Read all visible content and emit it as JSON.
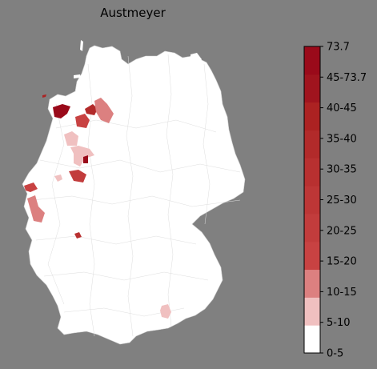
{
  "title": "Austmeyer",
  "colorbar": {
    "labels": [
      "0-5",
      "5-10",
      "10-15",
      "15-20",
      "20-25",
      "25-30",
      "30-35",
      "35-40",
      "40-45",
      "45-73.7",
      "73.7"
    ],
    "bins": [
      {
        "label": "0-5",
        "color": "#ffffff"
      },
      {
        "label": "5-10",
        "color": "#f0c0c0"
      },
      {
        "label": "10-15",
        "color": "#dc8080"
      },
      {
        "label": "15-20",
        "color": "#c84242"
      },
      {
        "label": "20-25",
        "color": "#c23c3c"
      },
      {
        "label": "25-30",
        "color": "#bd3636"
      },
      {
        "label": "30-35",
        "color": "#b83030"
      },
      {
        "label": "35-40",
        "color": "#b22a2a"
      },
      {
        "label": "40-45",
        "color": "#ac2222"
      },
      {
        "label": "45-73.7",
        "color": "#a0141e"
      },
      {
        "label": "73.7",
        "color": "#9a0a1a"
      }
    ]
  },
  "colors": {
    "background": "#808080",
    "land": "#ffffff",
    "border": "#d8d8d8"
  }
}
